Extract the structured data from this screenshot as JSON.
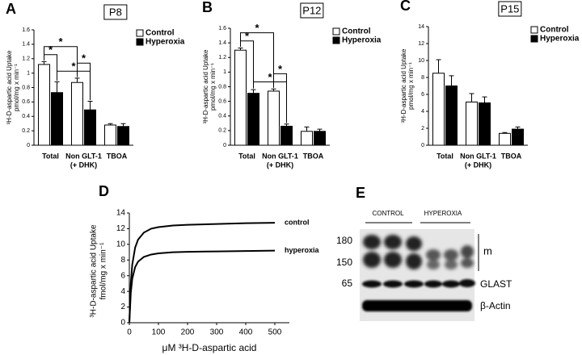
{
  "chart_data": [
    {
      "type": "bar",
      "panel": "A",
      "title": "P8",
      "ylabel": [
        "³H-D-aspartic acid Uptake",
        "pmol/mg x min⁻¹"
      ],
      "categories": [
        [
          "Total"
        ],
        [
          "Non GLT-1",
          "(+ DHK)"
        ],
        [
          "TBOA"
        ]
      ],
      "series": [
        {
          "name": "Control",
          "color": "#ffffff",
          "values": [
            1.12,
            0.87,
            0.28
          ],
          "errors": [
            0.04,
            0.06,
            0.02
          ]
        },
        {
          "name": "Hyperoxia",
          "color": "#000000",
          "values": [
            0.73,
            0.49,
            0.26
          ],
          "errors": [
            0.15,
            0.12,
            0.04
          ]
        }
      ],
      "ylim": [
        0,
        1.6
      ],
      "yticks": [
        0,
        0.2,
        0.4,
        0.6,
        0.8,
        1,
        1.2,
        1.4,
        1.6
      ],
      "legend": "upper right",
      "comparisons": [
        {
          "label": "*",
          "from": [
            0,
            0
          ],
          "to": [
            1,
            0
          ]
        },
        {
          "label": "*",
          "from": [
            1,
            0
          ],
          "to": [
            1,
            1
          ]
        },
        {
          "label": "*",
          "from": [
            0,
            0
          ],
          "to": [
            0,
            1
          ]
        },
        {
          "label": "*",
          "from": [
            0,
            1
          ],
          "to": [
            1,
            1
          ]
        }
      ]
    },
    {
      "type": "bar",
      "panel": "B",
      "title": "P12",
      "ylabel": [
        "³H-D-aspartic acid Uptake",
        "pmol/mg x min⁻¹"
      ],
      "categories": [
        [
          "Total"
        ],
        [
          "Non GLT-1",
          "(+ DHK)"
        ],
        [
          "TBOA"
        ]
      ],
      "series": [
        {
          "name": "Control",
          "color": "#ffffff",
          "values": [
            1.3,
            0.74,
            0.19
          ],
          "errors": [
            0.03,
            0.03,
            0.06
          ]
        },
        {
          "name": "Hyperoxia",
          "color": "#000000",
          "values": [
            0.71,
            0.26,
            0.19
          ],
          "errors": [
            0.05,
            0.03,
            0.03
          ]
        }
      ],
      "ylim": [
        0,
        1.6
      ],
      "yticks": [
        0,
        0.2,
        0.4,
        0.6,
        0.8,
        1,
        1.2,
        1.4,
        1.6
      ],
      "legend": "upper right",
      "comparisons": [
        {
          "label": "*",
          "from": [
            0,
            0
          ],
          "to": [
            1,
            0
          ]
        },
        {
          "label": "*",
          "from": [
            1,
            0
          ],
          "to": [
            1,
            1
          ]
        },
        {
          "label": "*",
          "from": [
            0,
            0
          ],
          "to": [
            0,
            1
          ]
        },
        {
          "label": "*",
          "from": [
            0,
            1
          ],
          "to": [
            1,
            1
          ]
        }
      ]
    },
    {
      "type": "bar",
      "panel": "C",
      "title": "P15",
      "ylabel": [
        "³H-D-aspartic acid Uptake",
        "pmol/mg x min⁻¹"
      ],
      "categories": [
        [
          "Total"
        ],
        [
          "Non GLT-1",
          "(+ DHK)"
        ],
        [
          "TBOA"
        ]
      ],
      "series": [
        {
          "name": "Control",
          "color": "#ffffff",
          "values": [
            8.5,
            5.1,
            1.4
          ],
          "errors": [
            1.6,
            1.0,
            0.1
          ]
        },
        {
          "name": "Hyperoxia",
          "color": "#000000",
          "values": [
            7.0,
            5.0,
            1.9
          ],
          "errors": [
            1.2,
            0.7,
            0.25
          ]
        }
      ],
      "ylim": [
        0,
        14
      ],
      "yticks": [
        0,
        2,
        4,
        6,
        8,
        10,
        12,
        14
      ],
      "legend": "upper right",
      "comparisons": []
    },
    {
      "type": "line",
      "panel": "D",
      "xlabel": "μM ³H-D-aspartic acid",
      "ylabel": [
        "³H-D-aspartic acid Uptake",
        "fmol/mg x min⁻¹"
      ],
      "x": [
        0,
        5,
        10,
        20,
        30,
        50,
        75,
        100,
        150,
        200,
        300,
        400,
        500
      ],
      "series": [
        {
          "name": "control",
          "color": "#000000",
          "values": [
            0,
            5,
            7.4,
            9.6,
            10.6,
            11.5,
            12.0,
            12.2,
            12.4,
            12.5,
            12.6,
            12.7,
            12.75
          ]
        },
        {
          "name": "hyperoxia",
          "color": "#000000",
          "values": [
            0,
            3.8,
            5.6,
            7.1,
            7.8,
            8.4,
            8.7,
            8.85,
            9.0,
            9.05,
            9.1,
            9.15,
            9.2
          ]
        }
      ],
      "xlim": [
        0,
        550
      ],
      "xticks": [
        0,
        100,
        200,
        300,
        400,
        500
      ],
      "ylim": [
        0,
        14
      ],
      "yticks": [
        0,
        2,
        4,
        6,
        8,
        10,
        12,
        14
      ]
    }
  ],
  "blot": {
    "panel": "E",
    "groups": [
      "CONTROL",
      "HYPEROXIA"
    ],
    "markers": [
      180,
      150,
      65
    ],
    "bracket_label": "m",
    "bands": [
      "GLAST",
      "β-Actin"
    ]
  }
}
